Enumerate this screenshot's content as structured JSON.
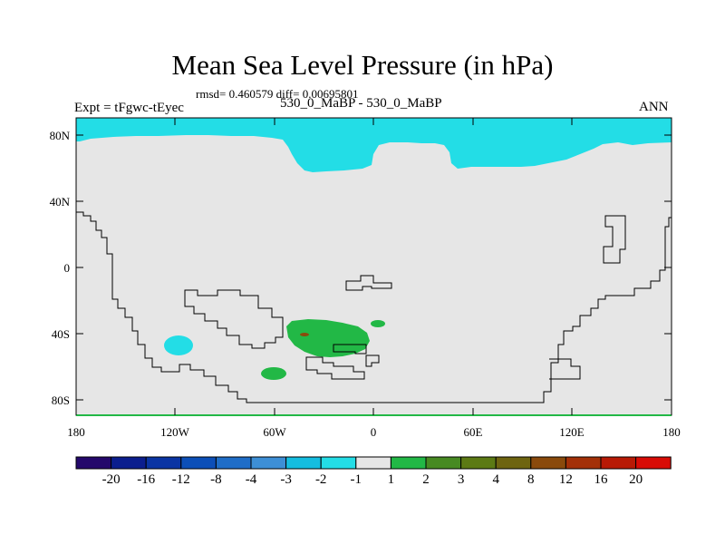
{
  "title": "Mean Sea Level Pressure (in hPa)",
  "stats": "rmsd= 0.460579 diff= 0.00695801",
  "expt_label": "Expt = tFgwc-tEyec",
  "subtitle": "530_0_MaBP - 530_0_MaBP",
  "season": "ANN",
  "lat_ticks": [
    "80N",
    "40N",
    "0",
    "40S",
    "80S"
  ],
  "lon_ticks": [
    "180",
    "120W",
    "60W",
    "0",
    "60E",
    "120E",
    "180"
  ],
  "colorbar": {
    "colors": [
      "#24086b",
      "#0b1e8e",
      "#0a34a3",
      "#0c4fb8",
      "#1f6dc7",
      "#3d8fd6",
      "#15bde0",
      "#23dde6",
      "#e6e6e6",
      "#22b846",
      "#478a22",
      "#5c7a14",
      "#6e6410",
      "#8a4a0c",
      "#a33008",
      "#b81a05",
      "#d80c06"
    ],
    "labels": [
      "-20",
      "-16",
      "-12",
      "-8",
      "-4",
      "-3",
      "-2",
      "-1",
      "1",
      "2",
      "3",
      "4",
      "8",
      "12",
      "16",
      "20"
    ]
  },
  "legend": {
    "background_color": "#e6e6e6",
    "negative_color": "#23dde6",
    "positive_color": "#22b846",
    "strong_positive_color": "#8a4a0c"
  }
}
